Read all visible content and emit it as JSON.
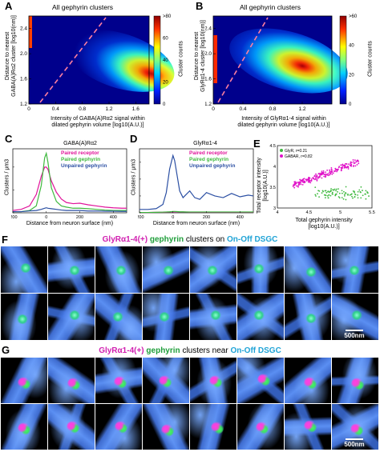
{
  "panels": {
    "A": {
      "letter": "A",
      "title": "All gephyrin clusters",
      "ylabel_l1": "Distance to nearest",
      "ylabel_l2": "GABA(A)Rα2 cluster [log10(nm)]",
      "xlabel_l1": "Intensity of GABA(A)Rα2 signal within",
      "xlabel_l2": "dilated gephyrin volume [log10(A.U.)]",
      "colorbar_label": "Cluster counts",
      "colorbar_top": ">80"
    },
    "B": {
      "letter": "B",
      "title": "All gephyrin clusters",
      "ylabel_l1": "Distance to nearest",
      "ylabel_l2": "GlyRα1-4 cluster [log10(nm)]",
      "xlabel_l1": "Intensity of GlyRα1-4 signal within",
      "xlabel_l2": "dilated gephyrin volume [log10(A.U.)]",
      "colorbar_label": "Cluster counts",
      "colorbar_top": ">60"
    },
    "C": {
      "letter": "C",
      "title": "GABA(A)Rα2",
      "ylabel": "Clusters / μm3",
      "xlabel": "Distance from neuron surface (nm)"
    },
    "D": {
      "letter": "D",
      "title": "GlyRα1-4",
      "ylabel": "Clusters / μm3",
      "xlabel": "Distance from neuron surface (nm)"
    },
    "E": {
      "letter": "E",
      "ylabel_l1": "Total receptor intensity",
      "ylabel_l2": "[log10(A.U.)]",
      "xlabel_l1": "Total gephyrin intensity",
      "xlabel_l2": "[log10(A.U.)]"
    },
    "F": {
      "letter": "F",
      "cap_receptor": "GlyRα1-4(+)",
      "cap_geph": "gephyrin",
      "cap_mid": "clusters on",
      "cap_cell": "On-Off DSGC",
      "scale": "500nm"
    },
    "G": {
      "letter": "G",
      "cap_receptor": "GlyRα1-4(+)",
      "cap_geph": "gephyrin",
      "cap_mid": "clusters near",
      "cap_cell": "On-Off DSGC",
      "scale": "500nm"
    }
  },
  "colors": {
    "paired": "#e0139a",
    "geph": "#3fb93f",
    "unpaired": "#2b4fa3",
    "magenta_text": "#d11fb0",
    "green_text": "#1f9e3a",
    "cyan_text": "#1fa3d6"
  },
  "chart_data": [
    {
      "id": "A",
      "type": "heatmap",
      "xlim": [
        0,
        1.8
      ],
      "ylim": [
        1.2,
        2.6
      ],
      "xticks": [
        "0",
        "0.4",
        "0.8",
        "1.2",
        "1.6"
      ],
      "yticks": [
        "1.2",
        "1.6",
        "2.0",
        "2.4"
      ],
      "colorbar_ticks": [
        "0",
        "20",
        "40",
        "60",
        ">80"
      ],
      "density_center": [
        1.45,
        1.98
      ]
    },
    {
      "id": "B",
      "type": "heatmap",
      "xlim": [
        0,
        1.6
      ],
      "ylim": [
        1.2,
        2.6
      ],
      "xticks": [
        "0",
        "0.4",
        "0.8",
        "1.2"
      ],
      "yticks": [
        "1.2",
        "1.6",
        "2.0",
        "2.4"
      ],
      "colorbar_ticks": [
        "0",
        "20",
        "40",
        ">60"
      ],
      "density_center": [
        1.05,
        1.95
      ]
    },
    {
      "id": "C",
      "type": "line",
      "xlim": [
        -200,
        480
      ],
      "xticks": [
        "-200",
        "0",
        "200",
        "400"
      ],
      "x": [
        -200,
        -150,
        -100,
        -60,
        -30,
        -10,
        0,
        10,
        30,
        60,
        90,
        120,
        160,
        200,
        250,
        300,
        350,
        400,
        450,
        480
      ],
      "series": [
        {
          "name": "Paired receptor",
          "values": [
            0.1,
            0.15,
            0.3,
            0.8,
            1.6,
            2.0,
            2.0,
            1.9,
            1.4,
            0.9,
            0.6,
            0.45,
            0.4,
            0.42,
            0.35,
            0.3,
            0.25,
            0.22,
            0.2,
            0.2
          ]
        },
        {
          "name": "Paired gephyrin",
          "values": [
            0.05,
            0.05,
            0.1,
            0.3,
            1.2,
            2.4,
            2.6,
            2.2,
            1.1,
            0.5,
            0.3,
            0.25,
            0.2,
            0.2,
            0.18,
            0.15,
            0.12,
            0.1,
            0.1,
            0.1
          ]
        },
        {
          "name": "Unpaired gephyrin",
          "values": [
            0.05,
            0.05,
            0.08,
            0.1,
            0.15,
            0.2,
            0.22,
            0.2,
            0.18,
            0.15,
            0.12,
            0.1,
            0.1,
            0.1,
            0.08,
            0.08,
            0.07,
            0.07,
            0.06,
            0.06
          ]
        }
      ]
    },
    {
      "id": "D",
      "type": "line",
      "xlim": [
        -200,
        480
      ],
      "xticks": [
        "-200",
        "0",
        "200",
        "400"
      ],
      "x": [
        -200,
        -150,
        -100,
        -60,
        -40,
        -20,
        0,
        10,
        25,
        40,
        60,
        80,
        100,
        130,
        160,
        200,
        250,
        300,
        350,
        400,
        450,
        480
      ],
      "series": [
        {
          "name": "Paired receptor",
          "values": [
            0.02,
            0.02,
            0.03,
            0.03,
            0.04,
            0.05,
            0.06,
            0.06,
            0.06,
            0.05,
            0.05,
            0.05,
            0.04,
            0.04,
            0.04,
            0.04,
            0.04,
            0.04,
            0.04,
            0.04,
            0.04,
            0.04
          ]
        },
        {
          "name": "Paired gephyrin",
          "values": [
            0.02,
            0.02,
            0.03,
            0.04,
            0.05,
            0.06,
            0.08,
            0.08,
            0.07,
            0.06,
            0.06,
            0.05,
            0.05,
            0.05,
            0.05,
            0.05,
            0.05,
            0.05,
            0.05,
            0.05,
            0.05,
            0.05
          ]
        },
        {
          "name": "Unpaired gephyrin",
          "values": [
            0.2,
            0.2,
            0.25,
            0.5,
            1.2,
            2.6,
            3.4,
            3.1,
            2.2,
            1.3,
            0.9,
            1.1,
            1.3,
            0.9,
            0.8,
            1.2,
            1.0,
            0.9,
            1.15,
            0.95,
            1.05,
            1.0
          ]
        }
      ]
    },
    {
      "id": "E",
      "type": "scatter",
      "xlim": [
        4,
        5.5
      ],
      "ylim": [
        3,
        4.5
      ],
      "xticks": [
        "4",
        "4.5",
        "5",
        "5.5"
      ],
      "yticks": [
        "3",
        "3.5",
        "4",
        "4.5"
      ],
      "series": [
        {
          "name": "GlyR, r=0.21"
        },
        {
          "name": "GABAR, r=0.82"
        }
      ]
    }
  ]
}
